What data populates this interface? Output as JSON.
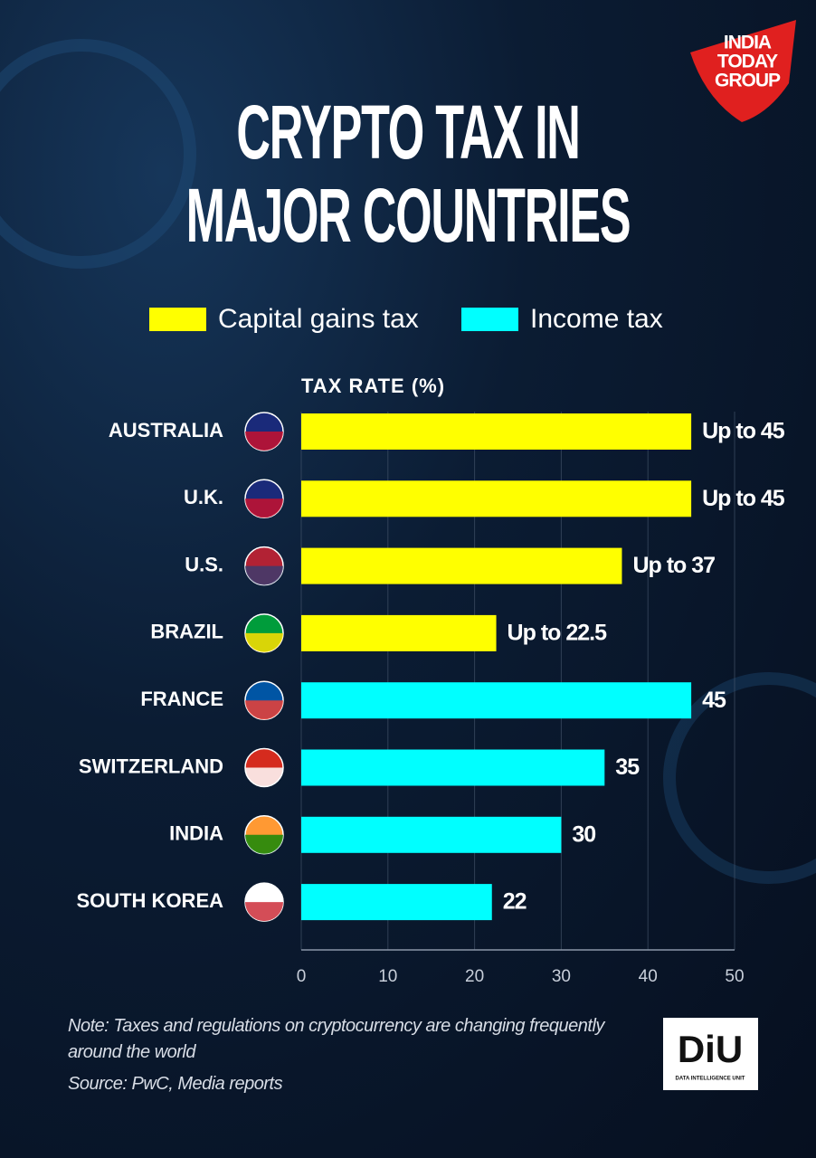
{
  "chart_data": {
    "type": "hbar",
    "title": "CRYPTO TAX IN MAJOR COUNTRIES",
    "x_label": "TAX RATE (%)",
    "categories": [
      "AUSTRALIA",
      "U.K.",
      "U.S.",
      "BRAZIL",
      "FRANCE",
      "SWITZERLAND",
      "INDIA",
      "SOUTH KOREA"
    ],
    "series": [
      {
        "name": "Capital gains tax",
        "color": "#ffff00",
        "values": [
          45,
          45,
          37,
          22.5,
          null,
          null,
          null,
          null
        ],
        "value_labels": [
          "Up to 45",
          "Up to 45",
          "Up to 37",
          "Up to 22.5",
          null,
          null,
          null,
          null
        ]
      },
      {
        "name": "Income tax",
        "color": "#00ffff",
        "values": [
          null,
          null,
          null,
          null,
          45,
          35,
          30,
          22
        ]
      }
    ],
    "xlim": [
      0,
      50
    ],
    "xticks": [
      0,
      10,
      20,
      30,
      40,
      50
    ],
    "grid": true,
    "note": "Note: Taxes and regulations on cryptocurrency are changing frequently around the world",
    "source": "Source: PwC, Media reports",
    "logo": [
      "INDIA",
      "TODAY",
      "GROUP"
    ],
    "badge": {
      "text": "DiU",
      "subtitle": "DATA INTELLIGENCE UNIT"
    }
  }
}
